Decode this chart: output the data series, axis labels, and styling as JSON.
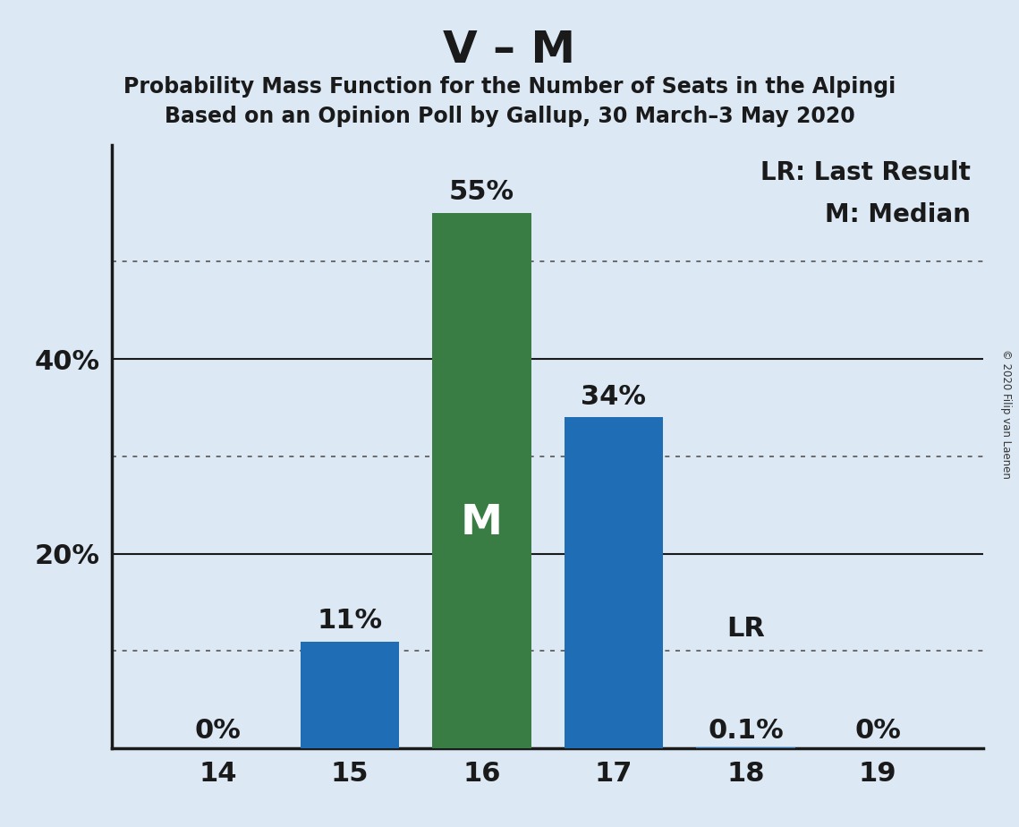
{
  "title": "V – M",
  "subtitle1": "Probability Mass Function for the Number of Seats in the Alpingi",
  "subtitle2": "Based on an Opinion Poll by Gallup, 30 March–3 May 2020",
  "copyright": "© 2020 Filip van Laenen",
  "categories": [
    14,
    15,
    16,
    17,
    18,
    19
  ],
  "values": [
    0.0,
    11.0,
    55.0,
    34.0,
    0.1,
    0.0
  ],
  "bar_colors": [
    "#1f6eb5",
    "#1f6eb5",
    "#3a7d44",
    "#1f6eb5",
    "#1f6eb5",
    "#1f6eb5"
  ],
  "median_index": 2,
  "lr_index": 4,
  "legend_lr": "LR: Last Result",
  "legend_m": "M: Median",
  "background_color": "#dce9f5",
  "text_color": "#1a1a1a",
  "ylim": [
    0,
    62
  ],
  "ytick_positions": [
    20,
    40
  ],
  "ytick_labels": [
    "20%",
    "40%"
  ],
  "dotted_gridlines": [
    10,
    30,
    50
  ],
  "solid_gridlines": [
    20,
    40
  ],
  "title_fontsize": 36,
  "subtitle_fontsize": 17,
  "tick_fontsize": 22,
  "bar_label_fontsize": 22,
  "legend_fontsize": 20,
  "m_fontsize": 34,
  "value_labels": [
    "0%",
    "11%",
    "55%",
    "34%",
    "0.1%",
    "0%"
  ],
  "bar_width": 0.75,
  "xlim": [
    13.2,
    19.8
  ]
}
